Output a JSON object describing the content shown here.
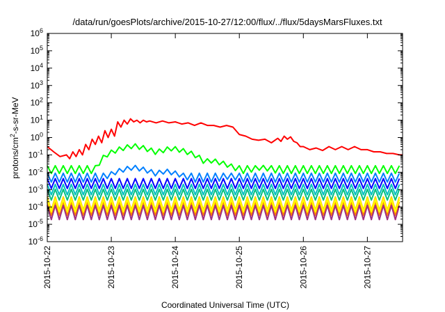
{
  "chart_data": {
    "type": "line",
    "title": "/data/run/goesPlots/archive/2015-10-27/12:00/flux/../flux/5daysMarsFluxes.txt",
    "xlabel": "Coordinated Universal Time (UTC)",
    "ylabel": {
      "prefix": "protons/cm",
      "sup": "2",
      "suffix": "-s-sr-MeV"
    },
    "yscale": "log",
    "ylim": [
      1e-06,
      1000000.0
    ],
    "xlim": [
      0,
      5.55
    ],
    "y_ticks": [
      {
        "exp": "-6",
        "value": 1e-06
      },
      {
        "exp": "-5",
        "value": 1e-05
      },
      {
        "exp": "-4",
        "value": 0.0001
      },
      {
        "exp": "-3",
        "value": 0.001
      },
      {
        "exp": "-2",
        "value": 0.01
      },
      {
        "exp": "-1",
        "value": 0.1
      },
      {
        "exp": "0",
        "value": 1
      },
      {
        "exp": "1",
        "value": 10.0
      },
      {
        "exp": "2",
        "value": 100.0
      },
      {
        "exp": "3",
        "value": 1000.0
      },
      {
        "exp": "4",
        "value": 10000.0
      },
      {
        "exp": "5",
        "value": 100000.0
      },
      {
        "exp": "6",
        "value": 1000000.0
      }
    ],
    "x_ticks": [
      {
        "label": "2015-10-22",
        "value": 0
      },
      {
        "label": "2015-10-23",
        "value": 1
      },
      {
        "label": "2015-10-24",
        "value": 2
      },
      {
        "label": "2015-10-25",
        "value": 3
      },
      {
        "label": "2015-10-26",
        "value": 4
      },
      {
        "label": "2015-10-27",
        "value": 5
      }
    ],
    "grid": false,
    "series": [
      {
        "color": "#ff0000",
        "x": [
          0,
          0.1,
          0.2,
          0.3,
          0.35,
          0.4,
          0.45,
          0.5,
          0.55,
          0.6,
          0.65,
          0.7,
          0.75,
          0.8,
          0.85,
          0.9,
          0.95,
          1.0,
          1.05,
          1.1,
          1.15,
          1.2,
          1.25,
          1.3,
          1.35,
          1.4,
          1.45,
          1.5,
          1.55,
          1.6,
          1.7,
          1.8,
          1.9,
          2.0,
          2.1,
          2.2,
          2.3,
          2.4,
          2.5,
          2.6,
          2.7,
          2.8,
          2.9,
          3.0,
          3.1,
          3.2,
          3.3,
          3.4,
          3.5,
          3.6,
          3.65,
          3.7,
          3.75,
          3.8,
          3.85,
          3.9,
          3.95,
          4.0,
          4.1,
          4.2,
          4.3,
          4.4,
          4.5,
          4.6,
          4.7,
          4.8,
          4.9,
          5.0,
          5.1,
          5.2,
          5.3,
          5.4,
          5.5,
          5.55
        ],
        "y": [
          0.3,
          0.15,
          0.08,
          0.1,
          0.06,
          0.15,
          0.08,
          0.2,
          0.1,
          0.4,
          0.2,
          0.8,
          0.4,
          1.2,
          0.5,
          2.5,
          1.0,
          3,
          1.2,
          8,
          4,
          10,
          6,
          12,
          8,
          10,
          7,
          10,
          8,
          9,
          7,
          9,
          7,
          8,
          6,
          7,
          5,
          7,
          5,
          5,
          4,
          5,
          4,
          1.5,
          1.2,
          0.8,
          0.7,
          0.8,
          0.5,
          0.9,
          0.6,
          1.2,
          0.8,
          1.1,
          0.6,
          0.5,
          0.3,
          0.3,
          0.2,
          0.25,
          0.18,
          0.3,
          0.2,
          0.3,
          0.2,
          0.3,
          0.2,
          0.2,
          0.15,
          0.15,
          0.12,
          0.12,
          0.1,
          0.1
        ]
      },
      {
        "color": "#00ff00",
        "base": 0.012,
        "amp": 2.0,
        "bump": [
          [
            1.0,
            0.35
          ],
          [
            1.6,
            0.25
          ],
          [
            2.2,
            0.05
          ],
          [
            3.0,
            0.02
          ]
        ]
      },
      {
        "color": "#0080ff",
        "base": 0.004,
        "amp": 2.2,
        "bump": [
          [
            1.0,
            0.02
          ],
          [
            1.5,
            0.012
          ],
          [
            2.5,
            0.006
          ]
        ]
      },
      {
        "color": "#0000ff",
        "base": 0.0018,
        "amp": 2.4,
        "bump": []
      },
      {
        "color": "#00c0c0",
        "base": 0.0008,
        "amp": 2.5,
        "bump": []
      },
      {
        "color": "#00c080",
        "base": 0.0004,
        "amp": 2.6,
        "bump": []
      },
      {
        "color": "#ffd700",
        "base": 0.00012,
        "amp": 3.2,
        "bump": []
      },
      {
        "color": "#ff8000",
        "base": 6e-05,
        "amp": 3.3,
        "bump": []
      },
      {
        "color": "#ffff00",
        "base": 9e-05,
        "amp": 3.0,
        "bump": []
      },
      {
        "color": "#a03080",
        "base": 3.5e-05,
        "amp": 3.5,
        "bump": []
      }
    ]
  }
}
